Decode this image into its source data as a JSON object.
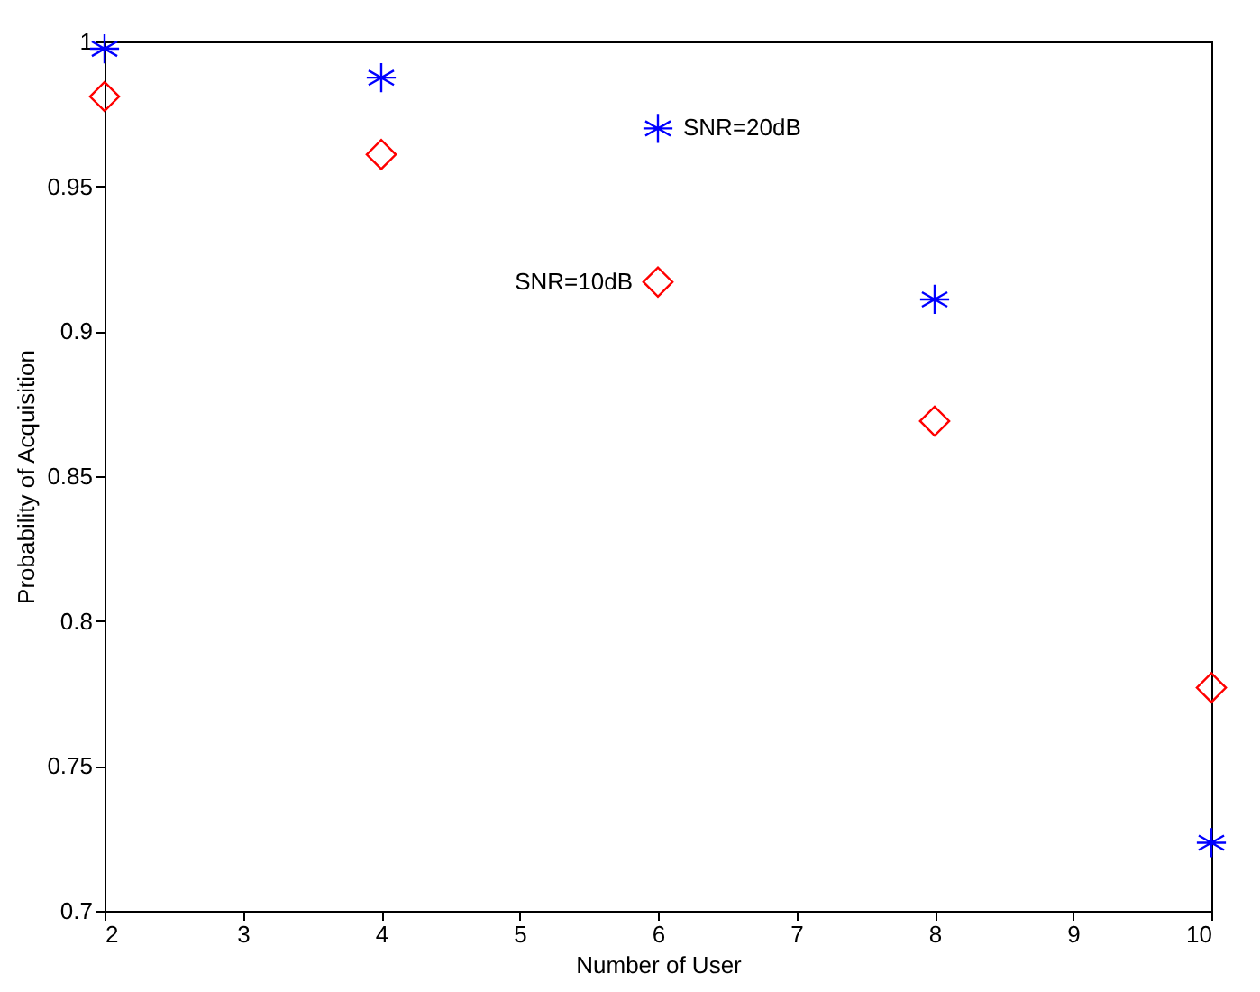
{
  "chart_data": {
    "type": "scatter",
    "xlabel": "Number of User",
    "ylabel": "Probability of Acquisition",
    "x": [
      2,
      4,
      6,
      8,
      10
    ],
    "series": [
      {
        "name": "SNR=20dB",
        "color": "#0000ff",
        "marker": "cross",
        "values": [
          0.9975,
          0.9875,
          0.97,
          0.911,
          0.7235
        ]
      },
      {
        "name": "SNR=10dB",
        "color": "#ff0000",
        "marker": "diamond",
        "values": [
          0.981,
          0.961,
          0.917,
          0.869,
          0.777
        ]
      }
    ],
    "xlim": [
      2,
      10
    ],
    "xticks": [
      2,
      3,
      4,
      5,
      6,
      7,
      8,
      9,
      10
    ],
    "ylim": [
      0.7,
      1
    ],
    "yticks": [
      0.7,
      0.75,
      0.8,
      0.85,
      0.9,
      0.95,
      1
    ],
    "grid": false
  }
}
